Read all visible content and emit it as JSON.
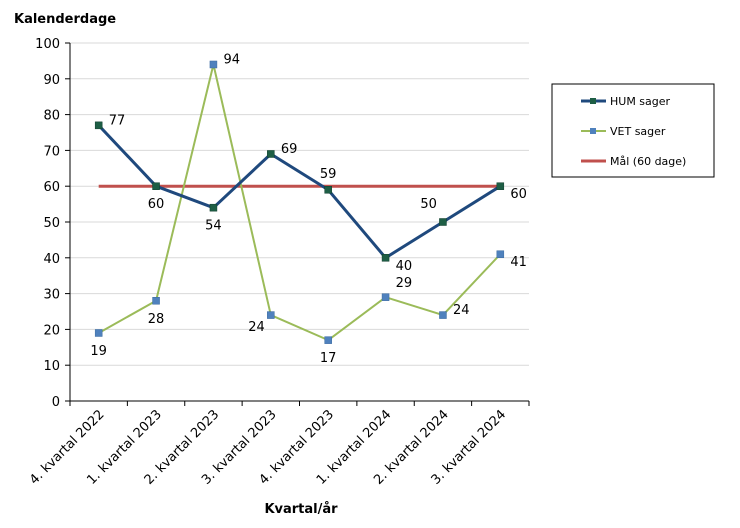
{
  "chart_data": {
    "type": "line",
    "ylabel": "Kalenderdage",
    "xlabel": "Kvartal/år",
    "ylim": [
      0,
      100
    ],
    "yticks": [
      0,
      10,
      20,
      30,
      40,
      50,
      60,
      70,
      80,
      90,
      100
    ],
    "categories": [
      "4. kvartal 2022",
      "1. kvartal 2023",
      "2. kvartal 2023",
      "3. kvartal 2023",
      "4. kvartal 2023",
      "1. kvartal 2024",
      "2. kvartal 2024",
      "3. kvartal 2024"
    ],
    "grid": true,
    "legend_position": "right",
    "series": [
      {
        "name": "HUM sager",
        "color": "#1F497D",
        "marker_color": "#1E5E45",
        "values": [
          77,
          60,
          54,
          69,
          59,
          40,
          50,
          60
        ],
        "label_positions": [
          "right",
          "below",
          "below",
          "right",
          "above",
          "below-right",
          "above-left",
          "below-right"
        ]
      },
      {
        "name": "VET sager",
        "color": "#9BBB59",
        "marker_color": "#4F81BD",
        "values": [
          19,
          28,
          94,
          24,
          17,
          29,
          24,
          41
        ],
        "label_positions": [
          "below",
          "below",
          "right",
          "below-left",
          "below",
          "above-right",
          "right",
          "below-right"
        ]
      },
      {
        "name": "Mål (60 dage)",
        "color": "#C0504D",
        "values": [
          60,
          60,
          60,
          60,
          60,
          60,
          60,
          60
        ]
      }
    ]
  }
}
